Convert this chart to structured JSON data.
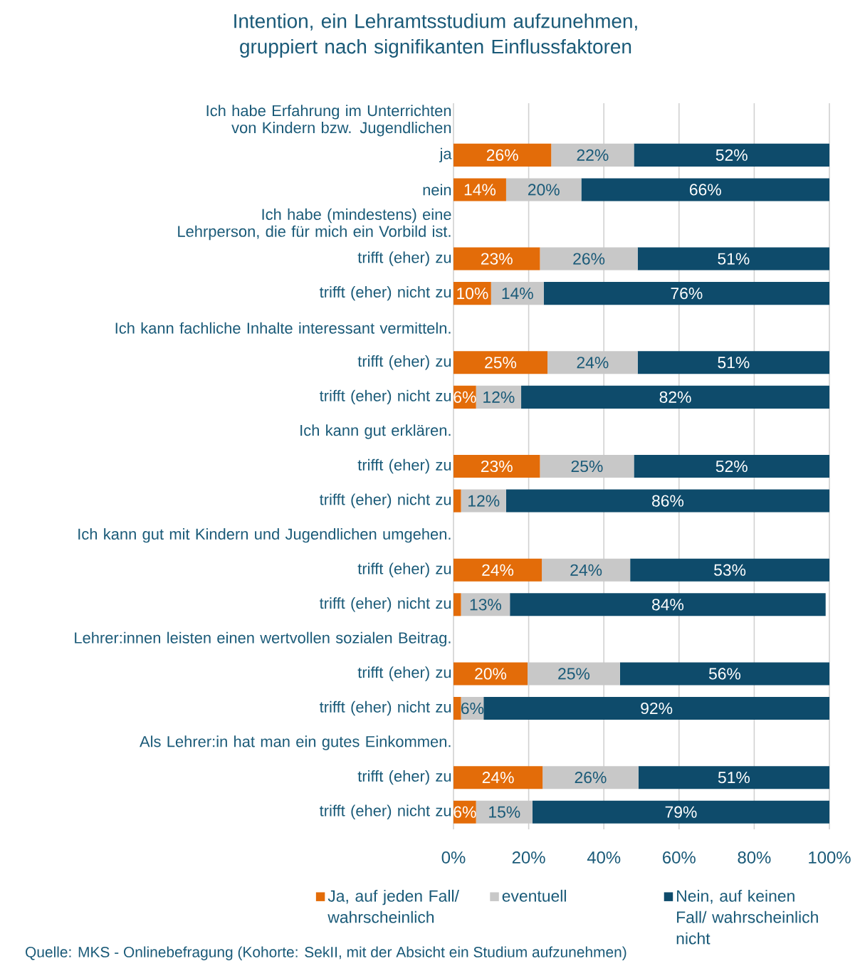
{
  "chart_data": {
    "type": "bar",
    "orientation": "horizontal",
    "stacked": true,
    "title": "Intention, ein Lehramtsstudium aufzunehmen, gruppiert nach signifikanten Einflussfaktoren",
    "categories": [
      "Ich habe Erfahrung im Unterrichten von Kindern bzw. Jugendlichen",
      "ja",
      "nein",
      "Ich habe (mindestens) eine Lehrperson, die für mich ein Vorbild ist.",
      "trifft (eher) zu",
      "trifft (eher) nicht zu",
      "Ich kann fachliche Inhalte interessant vermitteln.",
      "trifft (eher) zu",
      "trifft (eher) nicht zu",
      "Ich kann gut erklären.",
      "trifft (eher) zu",
      "trifft (eher) nicht zu",
      "Ich kann gut mit Kindern und Jugendlichen umgehen.",
      "trifft (eher) zu",
      "trifft (eher) nicht zu",
      "Lehrer:innen leisten einen wertvollen sozialen Beitrag.",
      "trifft (eher) zu",
      "trifft (eher) nicht zu",
      "Als Lehrer:in hat man ein gutes Einkommen.",
      "trifft (eher) zu",
      "trifft (eher) nicht zu"
    ],
    "series": [
      {
        "name": "Ja, auf jeden Fall/ wahrscheinlich",
        "color": "#e36c09",
        "values": [
          null,
          26,
          14,
          null,
          23,
          10,
          null,
          25,
          6,
          null,
          23,
          2,
          null,
          23.5,
          2,
          null,
          19.7,
          2,
          null,
          23.7,
          6
        ],
        "value_labels": [
          null,
          "26%",
          "14%",
          null,
          "23%",
          "10%",
          null,
          "25%",
          "6%",
          null,
          "23%",
          null,
          null,
          "24%",
          null,
          null,
          "20%",
          null,
          null,
          "24%",
          "6%"
        ]
      },
      {
        "name": "eventuell",
        "color": "#c8c8c8",
        "values": [
          null,
          22,
          20,
          null,
          26,
          14,
          null,
          24,
          12,
          null,
          25,
          12,
          null,
          23.5,
          13,
          null,
          24.6,
          6,
          null,
          25.5,
          15
        ],
        "value_labels": [
          null,
          "22%",
          "20%",
          null,
          "26%",
          "14%",
          null,
          "24%",
          "12%",
          null,
          "25%",
          "12%",
          null,
          "24%",
          "13%",
          null,
          "25%",
          "6%",
          null,
          "26%",
          "15%"
        ]
      },
      {
        "name": "Nein, auf keinen Fall/ wahrscheinlich nicht",
        "color": "#0e4b6b",
        "values": [
          null,
          52,
          66,
          null,
          51,
          76,
          null,
          51,
          82,
          null,
          52,
          86,
          null,
          53,
          84,
          null,
          55.7,
          92,
          null,
          50.8,
          79
        ],
        "value_labels": [
          null,
          "52%",
          "66%",
          null,
          "51%",
          "76%",
          null,
          "51%",
          "82%",
          null,
          "52%",
          "86%",
          null,
          "53%",
          "84%",
          null,
          "56%",
          "92%",
          null,
          "51%",
          "79%"
        ]
      }
    ],
    "xlim": [
      0,
      100
    ],
    "xticks": [
      {
        "value": 0,
        "label": "0%"
      },
      {
        "value": 20,
        "label": "20%"
      },
      {
        "value": 40,
        "label": "40%"
      },
      {
        "value": 60,
        "label": "60%"
      },
      {
        "value": 80,
        "label": "80%"
      },
      {
        "value": 100,
        "label": "100%"
      }
    ],
    "grid": "x",
    "legend": "bottom",
    "annotations": [
      "Quelle: MKS - Onlinebefragung (Kohorte: SekII, mit der Absicht ein Studium aufzunehmen)"
    ]
  }
}
